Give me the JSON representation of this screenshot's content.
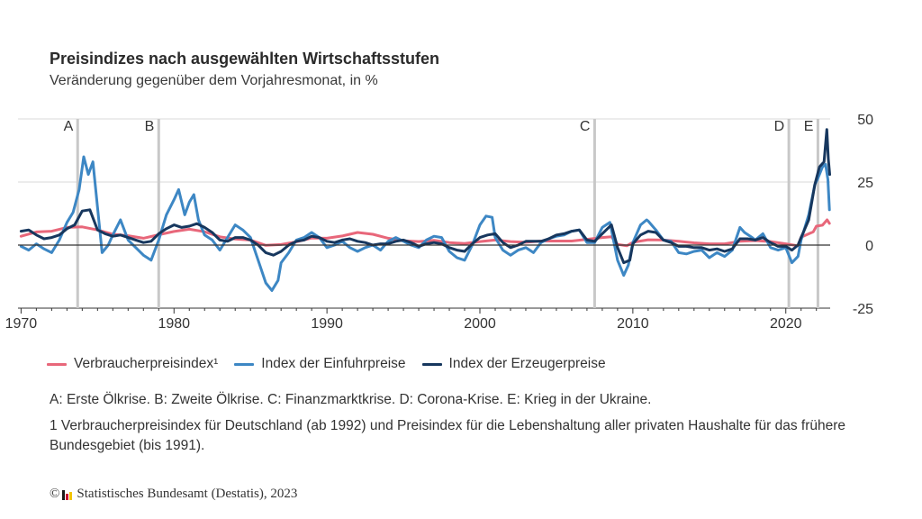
{
  "header": {
    "title": "Preisindizes nach ausgewählten Wirtschaftsstufen",
    "subtitle": "Veränderung gegenüber dem Vorjahresmonat, in %"
  },
  "notes": "A: Erste Ölkrise. B: Zweite Ölkrise. C: Finanzmarktkrise. D: Corona-Krise. E: Krieg in der Ukraine.",
  "footnote": "1 Verbraucherpreisindex für Deutschland (ab 1992) und Preisindex für die Lebenshaltung aller privaten Haushalte für das frühere Bundesgebiet (bis 1991).",
  "source": {
    "copyright": "©",
    "text": "Statistisches Bundesamt (Destatis), 2023"
  },
  "colors": {
    "vpi": "#e8677a",
    "import": "#3d87c4",
    "producer": "#17375e",
    "event_line": "#c8c8c8",
    "grid": "#d9d9d9",
    "zero_line": "#333333",
    "logo": [
      "#1a1a1a",
      "#c8102e",
      "#f2c500"
    ]
  },
  "chart_data": {
    "type": "line",
    "title": "",
    "xlabel": "",
    "ylabel": "",
    "xlim": [
      1969.8,
      2022.9
    ],
    "ylim": [
      -25,
      50
    ],
    "x_ticks": [
      1970,
      1980,
      1990,
      2000,
      2010,
      2020
    ],
    "y_ticks": [
      50,
      25,
      0,
      -25
    ],
    "y_axis_side": "right",
    "grid": "horizontal",
    "legend_position": "bottom",
    "events": [
      {
        "label": "A",
        "x": 1973.7
      },
      {
        "label": "B",
        "x": 1979.0
      },
      {
        "label": "C",
        "x": 2007.5
      },
      {
        "label": "D",
        "x": 2020.2
      },
      {
        "label": "E",
        "x": 2022.1
      }
    ],
    "series": [
      {
        "name": "Verbraucherpreisindex¹",
        "color_key": "vpi",
        "points": [
          [
            1970,
            3.5
          ],
          [
            1971,
            5.2
          ],
          [
            1972,
            5.5
          ],
          [
            1973,
            7.0
          ],
          [
            1974,
            7.2
          ],
          [
            1975,
            6.0
          ],
          [
            1976,
            4.3
          ],
          [
            1977,
            3.7
          ],
          [
            1978,
            2.7
          ],
          [
            1979,
            4.1
          ],
          [
            1980,
            5.4
          ],
          [
            1981,
            6.3
          ],
          [
            1982,
            5.3
          ],
          [
            1983,
            3.3
          ],
          [
            1984,
            2.4
          ],
          [
            1985,
            2.0
          ],
          [
            1986,
            -0.1
          ],
          [
            1987,
            0.2
          ],
          [
            1988,
            1.3
          ],
          [
            1989,
            2.8
          ],
          [
            1990,
            2.7
          ],
          [
            1991,
            3.6
          ],
          [
            1992,
            5.0
          ],
          [
            1993,
            4.3
          ],
          [
            1994,
            2.7
          ],
          [
            1995,
            1.7
          ],
          [
            1996,
            1.4
          ],
          [
            1997,
            1.9
          ],
          [
            1998,
            1.0
          ],
          [
            1999,
            0.6
          ],
          [
            2000,
            1.4
          ],
          [
            2001,
            2.0
          ],
          [
            2002,
            1.4
          ],
          [
            2003,
            1.1
          ],
          [
            2004,
            1.6
          ],
          [
            2005,
            1.6
          ],
          [
            2006,
            1.6
          ],
          [
            2007,
            2.3
          ],
          [
            2008,
            3.0
          ],
          [
            2008.6,
            3.3
          ],
          [
            2009,
            0.3
          ],
          [
            2009.6,
            -0.3
          ],
          [
            2010,
            1.1
          ],
          [
            2011,
            2.1
          ],
          [
            2012,
            2.0
          ],
          [
            2013,
            1.5
          ],
          [
            2014,
            0.9
          ],
          [
            2015,
            0.5
          ],
          [
            2016,
            0.5
          ],
          [
            2017,
            1.5
          ],
          [
            2018,
            1.8
          ],
          [
            2019,
            1.4
          ],
          [
            2020,
            0.5
          ],
          [
            2020.8,
            -0.3
          ],
          [
            2021,
            3.1
          ],
          [
            2021.8,
            5.3
          ],
          [
            2022,
            7.5
          ],
          [
            2022.4,
            7.9
          ],
          [
            2022.7,
            10.0
          ],
          [
            2022.85,
            8.6
          ]
        ]
      },
      {
        "name": "Index der Einfuhrpreise",
        "color_key": "import",
        "points": [
          [
            1970,
            -0.5
          ],
          [
            1970.5,
            -2.0
          ],
          [
            1971,
            0.5
          ],
          [
            1971.5,
            -1.5
          ],
          [
            1972,
            -3.0
          ],
          [
            1972.5,
            2.0
          ],
          [
            1973,
            9.0
          ],
          [
            1973.4,
            13.0
          ],
          [
            1973.8,
            22.0
          ],
          [
            1974.1,
            35.0
          ],
          [
            1974.4,
            28.0
          ],
          [
            1974.7,
            33.0
          ],
          [
            1975,
            15.0
          ],
          [
            1975.3,
            -3.0
          ],
          [
            1975.7,
            0.0
          ],
          [
            1976,
            4.0
          ],
          [
            1976.5,
            10.0
          ],
          [
            1977,
            2.0
          ],
          [
            1977.5,
            -1.0
          ],
          [
            1978,
            -4.0
          ],
          [
            1978.5,
            -6.0
          ],
          [
            1979,
            2.0
          ],
          [
            1979.5,
            12.0
          ],
          [
            1980,
            18.0
          ],
          [
            1980.3,
            22.0
          ],
          [
            1980.7,
            12.0
          ],
          [
            1981,
            17.0
          ],
          [
            1981.3,
            20.0
          ],
          [
            1981.6,
            10.0
          ],
          [
            1982,
            4.0
          ],
          [
            1982.5,
            2.0
          ],
          [
            1983,
            -2.0
          ],
          [
            1983.5,
            3.0
          ],
          [
            1984,
            8.0
          ],
          [
            1984.5,
            6.0
          ],
          [
            1985,
            3.0
          ],
          [
            1985.5,
            -6.0
          ],
          [
            1986,
            -15.0
          ],
          [
            1986.4,
            -18.0
          ],
          [
            1986.8,
            -14.0
          ],
          [
            1987,
            -7.0
          ],
          [
            1987.5,
            -3.0
          ],
          [
            1988,
            2.0
          ],
          [
            1988.5,
            3.0
          ],
          [
            1989,
            5.0
          ],
          [
            1989.5,
            3.0
          ],
          [
            1990,
            -1.0
          ],
          [
            1990.5,
            0.0
          ],
          [
            1991,
            1.5
          ],
          [
            1991.5,
            -1.0
          ],
          [
            1992,
            -2.5
          ],
          [
            1992.5,
            -1.0
          ],
          [
            1993,
            0.0
          ],
          [
            1993.5,
            -2.0
          ],
          [
            1994,
            1.5
          ],
          [
            1994.5,
            3.0
          ],
          [
            1995,
            1.5
          ],
          [
            1995.5,
            0.0
          ],
          [
            1996,
            -1.0
          ],
          [
            1996.5,
            2.0
          ],
          [
            1997,
            3.5
          ],
          [
            1997.5,
            3.0
          ],
          [
            1998,
            -2.5
          ],
          [
            1998.5,
            -5.0
          ],
          [
            1999,
            -6.0
          ],
          [
            1999.5,
            0.0
          ],
          [
            2000,
            8.0
          ],
          [
            2000.4,
            11.5
          ],
          [
            2000.8,
            11.0
          ],
          [
            2001,
            3.0
          ],
          [
            2001.5,
            -2.0
          ],
          [
            2002,
            -4.0
          ],
          [
            2002.5,
            -2.0
          ],
          [
            2003,
            -1.0
          ],
          [
            2003.5,
            -3.0
          ],
          [
            2004,
            1.0
          ],
          [
            2004.5,
            2.5
          ],
          [
            2005,
            3.5
          ],
          [
            2005.5,
            4.0
          ],
          [
            2006,
            5.5
          ],
          [
            2006.5,
            6.0
          ],
          [
            2007,
            1.0
          ],
          [
            2007.5,
            1.0
          ],
          [
            2008,
            7.0
          ],
          [
            2008.5,
            9.0
          ],
          [
            2009,
            -6.0
          ],
          [
            2009.4,
            -12.0
          ],
          [
            2009.7,
            -8.0
          ],
          [
            2010,
            1.0
          ],
          [
            2010.5,
            8.0
          ],
          [
            2010.9,
            10.0
          ],
          [
            2011,
            9.5
          ],
          [
            2011.5,
            6.0
          ],
          [
            2012,
            2.0
          ],
          [
            2012.5,
            1.5
          ],
          [
            2013,
            -3.0
          ],
          [
            2013.5,
            -3.5
          ],
          [
            2014,
            -2.5
          ],
          [
            2014.5,
            -2.0
          ],
          [
            2015,
            -5.0
          ],
          [
            2015.5,
            -3.0
          ],
          [
            2016,
            -4.5
          ],
          [
            2016.5,
            -2.0
          ],
          [
            2017,
            7.0
          ],
          [
            2017.3,
            5.0
          ],
          [
            2017.8,
            3.0
          ],
          [
            2018,
            2.0
          ],
          [
            2018.5,
            4.5
          ],
          [
            2019,
            -1.0
          ],
          [
            2019.5,
            -2.0
          ],
          [
            2020,
            -1.0
          ],
          [
            2020.4,
            -7.0
          ],
          [
            2020.8,
            -4.5
          ],
          [
            2021,
            2.0
          ],
          [
            2021.5,
            12.0
          ],
          [
            2021.9,
            24.0
          ],
          [
            2022.1,
            26.5
          ],
          [
            2022.4,
            31.0
          ],
          [
            2022.6,
            32.0
          ],
          [
            2022.75,
            26.0
          ],
          [
            2022.85,
            14.0
          ]
        ]
      },
      {
        "name": "Index der Erzeugerpreise",
        "color_key": "producer",
        "points": [
          [
            1970,
            5.5
          ],
          [
            1970.5,
            6.0
          ],
          [
            1971,
            4.0
          ],
          [
            1971.5,
            2.5
          ],
          [
            1972,
            3.0
          ],
          [
            1972.5,
            4.0
          ],
          [
            1973,
            6.5
          ],
          [
            1973.5,
            8.0
          ],
          [
            1974,
            13.5
          ],
          [
            1974.5,
            14.0
          ],
          [
            1975,
            6.0
          ],
          [
            1975.5,
            4.5
          ],
          [
            1976,
            3.5
          ],
          [
            1976.5,
            4.0
          ],
          [
            1977,
            3.0
          ],
          [
            1977.5,
            2.0
          ],
          [
            1978,
            1.0
          ],
          [
            1978.5,
            1.5
          ],
          [
            1979,
            4.5
          ],
          [
            1979.5,
            6.5
          ],
          [
            1980,
            8.0
          ],
          [
            1980.5,
            7.0
          ],
          [
            1981,
            7.5
          ],
          [
            1981.5,
            8.5
          ],
          [
            1982,
            7.0
          ],
          [
            1982.5,
            5.0
          ],
          [
            1983,
            2.0
          ],
          [
            1983.5,
            1.5
          ],
          [
            1984,
            3.0
          ],
          [
            1984.5,
            3.0
          ],
          [
            1985,
            2.0
          ],
          [
            1985.5,
            0.0
          ],
          [
            1986,
            -3.0
          ],
          [
            1986.5,
            -4.0
          ],
          [
            1987,
            -2.5
          ],
          [
            1987.5,
            0.0
          ],
          [
            1988,
            1.5
          ],
          [
            1988.5,
            2.0
          ],
          [
            1989,
            3.5
          ],
          [
            1989.5,
            3.0
          ],
          [
            1990,
            1.5
          ],
          [
            1990.5,
            1.0
          ],
          [
            1991,
            2.0
          ],
          [
            1991.5,
            2.5
          ],
          [
            1992,
            1.5
          ],
          [
            1992.5,
            1.0
          ],
          [
            1993,
            0.0
          ],
          [
            1993.5,
            0.5
          ],
          [
            1994,
            0.5
          ],
          [
            1994.5,
            1.5
          ],
          [
            1995,
            2.0
          ],
          [
            1995.5,
            1.0
          ],
          [
            1996,
            -0.5
          ],
          [
            1996.5,
            0.5
          ],
          [
            1997,
            1.0
          ],
          [
            1997.5,
            0.5
          ],
          [
            1998,
            -1.0
          ],
          [
            1998.5,
            -2.0
          ],
          [
            1999,
            -2.5
          ],
          [
            1999.5,
            0.5
          ],
          [
            2000,
            3.0
          ],
          [
            2000.5,
            4.0
          ],
          [
            2001,
            4.5
          ],
          [
            2001.5,
            1.0
          ],
          [
            2002,
            -1.0
          ],
          [
            2002.5,
            0.0
          ],
          [
            2003,
            1.5
          ],
          [
            2003.5,
            1.5
          ],
          [
            2004,
            1.5
          ],
          [
            2004.5,
            2.5
          ],
          [
            2005,
            4.0
          ],
          [
            2005.5,
            4.5
          ],
          [
            2006,
            5.5
          ],
          [
            2006.5,
            6.0
          ],
          [
            2007,
            2.0
          ],
          [
            2007.5,
            1.5
          ],
          [
            2008,
            4.5
          ],
          [
            2008.6,
            8.0
          ],
          [
            2009,
            -1.0
          ],
          [
            2009.4,
            -7.0
          ],
          [
            2009.8,
            -6.0
          ],
          [
            2010,
            0.5
          ],
          [
            2010.5,
            4.0
          ],
          [
            2011,
            5.5
          ],
          [
            2011.5,
            5.0
          ],
          [
            2012,
            2.0
          ],
          [
            2012.5,
            1.0
          ],
          [
            2013,
            -0.5
          ],
          [
            2013.5,
            -0.5
          ],
          [
            2014,
            -1.0
          ],
          [
            2014.5,
            -1.0
          ],
          [
            2015,
            -2.0
          ],
          [
            2015.5,
            -1.5
          ],
          [
            2016,
            -2.5
          ],
          [
            2016.5,
            -1.5
          ],
          [
            2017,
            2.5
          ],
          [
            2017.5,
            2.5
          ],
          [
            2018,
            2.0
          ],
          [
            2018.5,
            3.0
          ],
          [
            2019,
            1.0
          ],
          [
            2019.5,
            -0.5
          ],
          [
            2020,
            -0.5
          ],
          [
            2020.4,
            -2.0
          ],
          [
            2020.8,
            0.0
          ],
          [
            2021,
            3.0
          ],
          [
            2021.5,
            10.0
          ],
          [
            2021.9,
            24.0
          ],
          [
            2022.2,
            31.0
          ],
          [
            2022.5,
            33.0
          ],
          [
            2022.68,
            45.8
          ],
          [
            2022.78,
            34.0
          ],
          [
            2022.87,
            28.0
          ]
        ]
      }
    ]
  }
}
